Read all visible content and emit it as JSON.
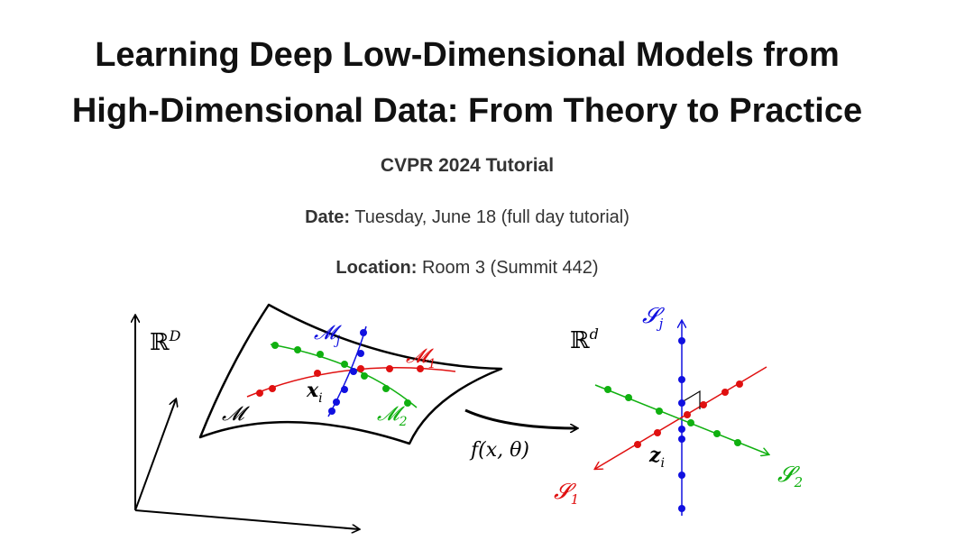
{
  "header": {
    "title_line1": "Learning Deep Low-Dimensional Models from",
    "title_line2": "High-Dimensional Data: From Theory to Practice",
    "subtitle": "CVPR 2024 Tutorial"
  },
  "info": {
    "date_label": "Date:",
    "date_value": "Tuesday, June 18 (full day tutorial)",
    "location_label": "Location:",
    "location_value": "Room 3 (Summit 442)"
  },
  "figure": {
    "labels": {
      "ambient_space": "ℝ",
      "ambient_sup": "D",
      "manifold": "𝓜",
      "manifold_j": "𝓜",
      "manifold_j_sub": "j",
      "manifold_1": "𝓜",
      "manifold_1_sub": "1",
      "manifold_2": "𝓜",
      "manifold_2_sub": "2",
      "point_x": "x",
      "point_x_sub": "i",
      "mapping": "f(x, θ)",
      "feature_space": "ℝ",
      "feature_sup": "d",
      "subspace_j": "𝓢",
      "subspace_j_sub": "j",
      "subspace_1": "𝓢",
      "subspace_1_sub": "1",
      "subspace_2": "𝓢",
      "subspace_2_sub": "2",
      "point_z": "z",
      "point_z_sub": "i"
    },
    "colors": {
      "blue": "#1010e0",
      "red": "#e01010",
      "green": "#10b010",
      "black": "#000000"
    }
  }
}
